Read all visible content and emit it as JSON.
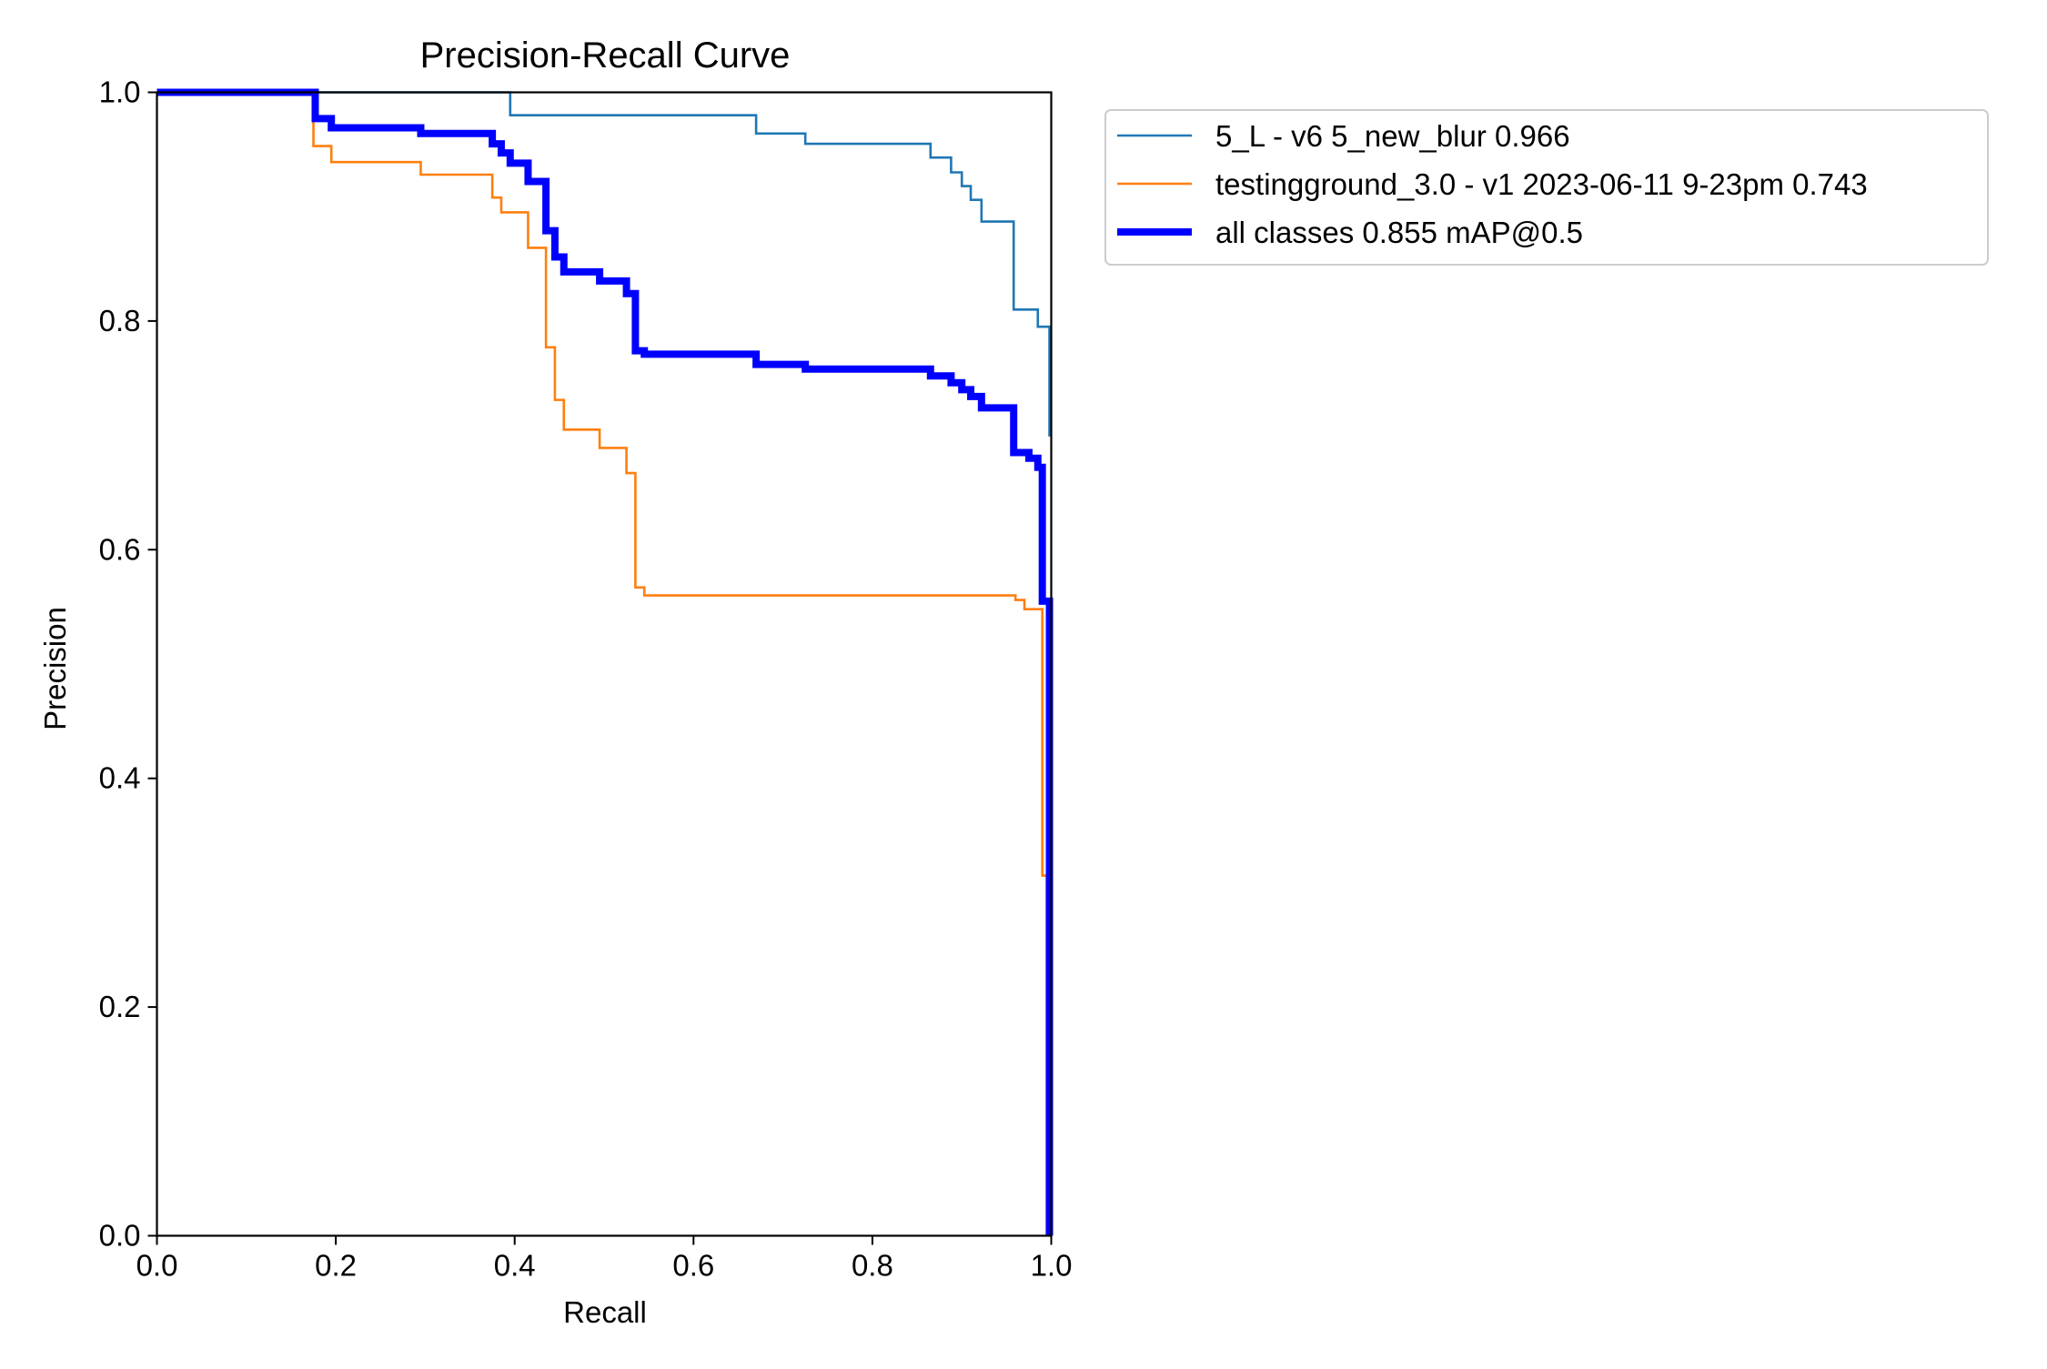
{
  "chart_data": {
    "type": "line",
    "title": "Precision-Recall Curve",
    "xlabel": "Recall",
    "ylabel": "Precision",
    "xlim": [
      0,
      1
    ],
    "ylim": [
      0,
      1
    ],
    "xticks": [
      "0.0",
      "0.2",
      "0.4",
      "0.6",
      "0.8",
      "1.0"
    ],
    "yticks": [
      "0.0",
      "0.2",
      "0.4",
      "0.6",
      "0.8",
      "1.0"
    ],
    "grid": false,
    "legend_position": "outside-right-top",
    "series": [
      {
        "name": "5_L - v6 5_new_blur 0.966",
        "color": "#1f77b4",
        "weight": "thin",
        "points": [
          [
            0,
            1.0
          ],
          [
            0.395,
            1.0
          ],
          [
            0.395,
            0.98
          ],
          [
            0.67,
            0.98
          ],
          [
            0.67,
            0.964
          ],
          [
            0.725,
            0.964
          ],
          [
            0.725,
            0.955
          ],
          [
            0.865,
            0.955
          ],
          [
            0.865,
            0.943
          ],
          [
            0.888,
            0.943
          ],
          [
            0.888,
            0.93
          ],
          [
            0.9,
            0.93
          ],
          [
            0.9,
            0.918
          ],
          [
            0.91,
            0.918
          ],
          [
            0.91,
            0.906
          ],
          [
            0.922,
            0.906
          ],
          [
            0.922,
            0.887
          ],
          [
            0.958,
            0.887
          ],
          [
            0.958,
            0.81
          ],
          [
            0.985,
            0.81
          ],
          [
            0.985,
            0.795
          ],
          [
            0.998,
            0.795
          ],
          [
            0.998,
            0.7
          ],
          [
            1.0,
            0.7
          ]
        ]
      },
      {
        "name": "testingground_3.0 - v1 2023-06-11 9-23pm 0.743",
        "color": "#ff7f0e",
        "weight": "thin",
        "points": [
          [
            0,
            1.0
          ],
          [
            0.175,
            1.0
          ],
          [
            0.175,
            0.953
          ],
          [
            0.195,
            0.953
          ],
          [
            0.195,
            0.939
          ],
          [
            0.295,
            0.939
          ],
          [
            0.295,
            0.928
          ],
          [
            0.375,
            0.928
          ],
          [
            0.375,
            0.908
          ],
          [
            0.385,
            0.908
          ],
          [
            0.385,
            0.895
          ],
          [
            0.415,
            0.895
          ],
          [
            0.415,
            0.864
          ],
          [
            0.435,
            0.864
          ],
          [
            0.435,
            0.777
          ],
          [
            0.445,
            0.777
          ],
          [
            0.445,
            0.731
          ],
          [
            0.455,
            0.731
          ],
          [
            0.455,
            0.705
          ],
          [
            0.495,
            0.705
          ],
          [
            0.495,
            0.689
          ],
          [
            0.525,
            0.689
          ],
          [
            0.525,
            0.667
          ],
          [
            0.535,
            0.667
          ],
          [
            0.535,
            0.567
          ],
          [
            0.545,
            0.567
          ],
          [
            0.545,
            0.56
          ],
          [
            0.96,
            0.56
          ],
          [
            0.96,
            0.556
          ],
          [
            0.97,
            0.556
          ],
          [
            0.97,
            0.548
          ],
          [
            0.99,
            0.548
          ],
          [
            0.99,
            0.315
          ],
          [
            0.995,
            0.315
          ],
          [
            0.995,
            0.0
          ]
        ]
      },
      {
        "name": "all classes 0.855 mAP@0.5",
        "color": "#0000ff",
        "weight": "thick",
        "points": [
          [
            0,
            1.0
          ],
          [
            0.177,
            1.0
          ],
          [
            0.177,
            0.977
          ],
          [
            0.195,
            0.977
          ],
          [
            0.195,
            0.969
          ],
          [
            0.295,
            0.969
          ],
          [
            0.295,
            0.964
          ],
          [
            0.375,
            0.964
          ],
          [
            0.375,
            0.955
          ],
          [
            0.385,
            0.955
          ],
          [
            0.385,
            0.947
          ],
          [
            0.395,
            0.947
          ],
          [
            0.395,
            0.938
          ],
          [
            0.415,
            0.938
          ],
          [
            0.415,
            0.922
          ],
          [
            0.435,
            0.922
          ],
          [
            0.435,
            0.879
          ],
          [
            0.445,
            0.879
          ],
          [
            0.445,
            0.856
          ],
          [
            0.455,
            0.856
          ],
          [
            0.455,
            0.843
          ],
          [
            0.495,
            0.843
          ],
          [
            0.495,
            0.835
          ],
          [
            0.525,
            0.835
          ],
          [
            0.525,
            0.824
          ],
          [
            0.535,
            0.824
          ],
          [
            0.535,
            0.774
          ],
          [
            0.545,
            0.774
          ],
          [
            0.545,
            0.771
          ],
          [
            0.67,
            0.771
          ],
          [
            0.67,
            0.762
          ],
          [
            0.725,
            0.762
          ],
          [
            0.725,
            0.758
          ],
          [
            0.865,
            0.758
          ],
          [
            0.865,
            0.752
          ],
          [
            0.888,
            0.752
          ],
          [
            0.888,
            0.746
          ],
          [
            0.9,
            0.746
          ],
          [
            0.9,
            0.74
          ],
          [
            0.91,
            0.74
          ],
          [
            0.91,
            0.734
          ],
          [
            0.922,
            0.734
          ],
          [
            0.922,
            0.724
          ],
          [
            0.958,
            0.724
          ],
          [
            0.958,
            0.685
          ],
          [
            0.975,
            0.685
          ],
          [
            0.975,
            0.68
          ],
          [
            0.985,
            0.68
          ],
          [
            0.985,
            0.672
          ],
          [
            0.99,
            0.672
          ],
          [
            0.99,
            0.555
          ],
          [
            0.998,
            0.555
          ],
          [
            0.998,
            0.0
          ]
        ]
      }
    ]
  }
}
